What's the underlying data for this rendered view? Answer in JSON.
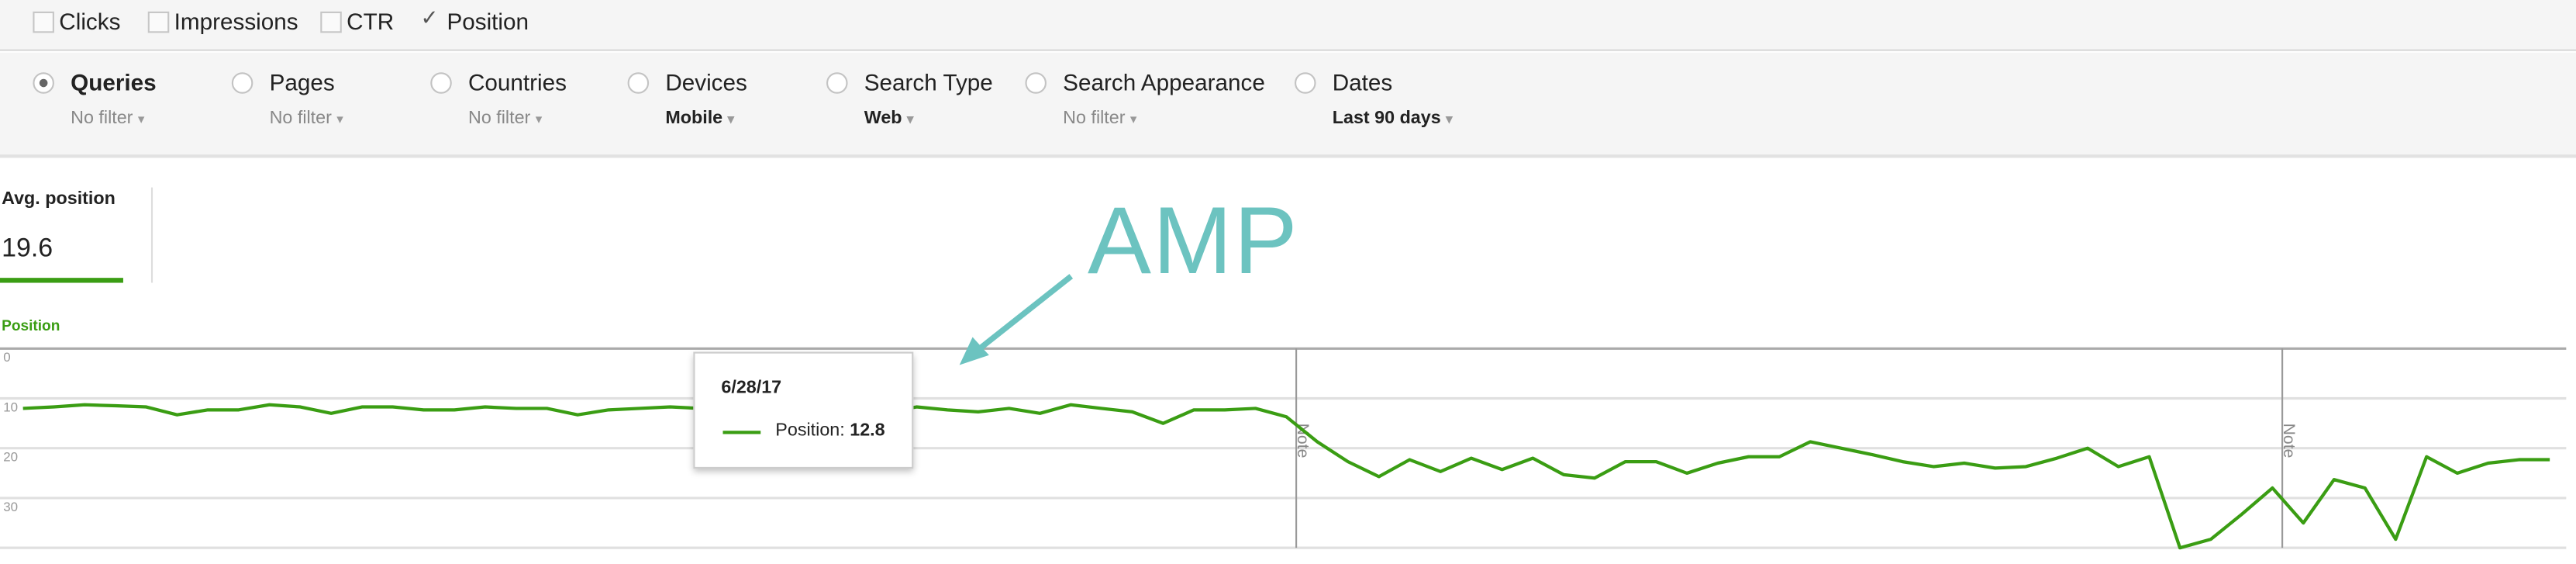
{
  "metrics": [
    {
      "label": "Clicks",
      "checked": false
    },
    {
      "label": "Impressions",
      "checked": false
    },
    {
      "label": "CTR",
      "checked": false
    },
    {
      "label": "Position",
      "checked": true
    }
  ],
  "check_glyph": "✓",
  "caret_glyph": "▾",
  "groups": [
    {
      "label": "Queries",
      "filter": "No filter",
      "selected": true,
      "set": false
    },
    {
      "label": "Pages",
      "filter": "No filter",
      "selected": false,
      "set": false
    },
    {
      "label": "Countries",
      "filter": "No filter",
      "selected": false,
      "set": false
    },
    {
      "label": "Devices",
      "filter": "Mobile",
      "selected": false,
      "set": true
    },
    {
      "label": "Search Type",
      "filter": "Web",
      "selected": false,
      "set": true
    },
    {
      "label": "Search Appearance",
      "filter": "No filter",
      "selected": false,
      "set": false
    },
    {
      "label": "Dates",
      "filter": "Last 90 days",
      "selected": false,
      "set": true
    }
  ],
  "summary": {
    "label": "Avg. position",
    "value": "19.6"
  },
  "annotation": {
    "text": "AMP",
    "color": "#6cc3c0"
  },
  "colors": {
    "series": "#3a9d13",
    "accent_green": "#3a9d13"
  },
  "chart_data": {
    "type": "line",
    "series_label": "Position",
    "y_inverted": true,
    "ylim": [
      0,
      40
    ],
    "y_ticks": [
      "0",
      "10",
      "20",
      "30"
    ],
    "grid": true,
    "values": [
      12,
      11.7,
      11.3,
      11.5,
      11.7,
      13.3,
      12.3,
      12.3,
      11.3,
      11.7,
      13,
      11.7,
      11.7,
      12.3,
      12.3,
      11.7,
      12,
      12,
      13.3,
      12.3,
      12,
      11.7,
      12,
      12,
      12,
      12.3,
      11.7,
      11.7,
      12.8,
      11.7,
      12.3,
      12.7,
      12,
      13,
      11.3,
      12,
      12.7,
      15,
      12.3,
      12.3,
      12,
      13.7,
      18.7,
      22.7,
      25.7,
      22.3,
      24.7,
      22,
      24.3,
      22,
      25.3,
      26,
      22.7,
      22.7,
      25,
      23,
      21.7,
      21.7,
      18.7,
      20,
      21.3,
      22.7,
      23.7,
      23,
      24,
      23.7,
      22,
      20,
      23.7,
      21.7,
      40,
      38.3,
      33.3,
      28,
      35,
      26.3,
      28,
      38.3,
      21.7,
      25,
      23,
      22.3,
      22.3
    ],
    "notes": [
      {
        "index": 41,
        "label": "Note"
      },
      {
        "index": 73,
        "label": "Note"
      }
    ],
    "tooltip": {
      "index": 28,
      "date": "6/28/17",
      "label": "Position:",
      "value": "12.8"
    }
  }
}
